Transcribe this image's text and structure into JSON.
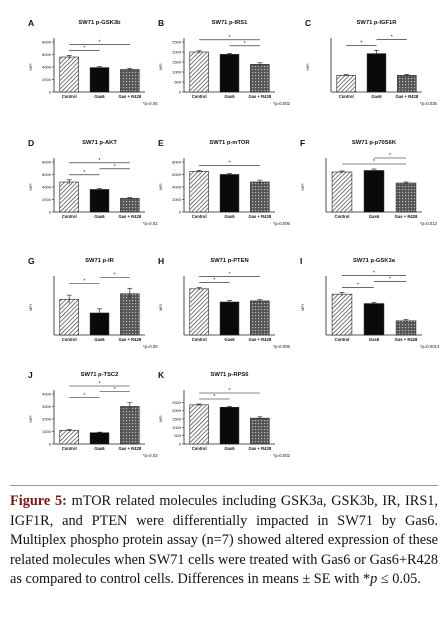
{
  "figure": {
    "caption_label": "Figure 5:",
    "caption_text": " mTOR related molecules including GSK3a, GSK3b, IR, IRS1, IGF1R, and PTEN were differentially impacted in SW71 by Gas6. Multiplex phospho protein assay (n=7) showed altered expression of these related molecules when SW71 cells were treated with Gas6 or Gas6+R428 as compared to control cells. Differences in means ± SE with *p ≤ 0.05."
  },
  "chart_data": [
    {
      "panel": "A",
      "type": "bar",
      "title": "SW71 p-GSK3b",
      "ylabel": "MFI",
      "categories": [
        "Control",
        "Gas6",
        "Gas + R428"
      ],
      "values": [
        5600,
        3900,
        3600
      ],
      "errors": [
        250,
        150,
        200
      ],
      "ylim": [
        0,
        8000
      ],
      "yticks": [
        "0",
        "2000",
        "4000",
        "6000",
        "8000"
      ],
      "pvalue": "*p=0.05",
      "brackets": [
        [
          0,
          1
        ],
        [
          0,
          2
        ]
      ]
    },
    {
      "panel": "B",
      "type": "bar",
      "title": "SW71 p-IRS1",
      "ylabel": "MFI",
      "categories": [
        "Control",
        "Gas6",
        "Gas + R428"
      ],
      "values": [
        2000,
        1880,
        1380
      ],
      "errors": [
        60,
        50,
        80
      ],
      "ylim": [
        0,
        2500
      ],
      "yticks": [
        "0",
        "500",
        "1000",
        "1500",
        "2000",
        "2500"
      ],
      "pvalue": "*p=0.002",
      "brackets": [
        [
          1,
          2
        ],
        [
          0,
          2
        ]
      ]
    },
    {
      "panel": "C",
      "type": "bar",
      "title": "SW71 p-IGF1R",
      "ylabel": "MFI",
      "categories": [
        "Control",
        "Gas6",
        "Gas + R428"
      ],
      "values": [
        1000,
        2300,
        1000
      ],
      "errors": [
        50,
        200,
        60
      ],
      "ylim": [
        0,
        3000
      ],
      "yticks": [],
      "pvalue": "*p=0.035",
      "brackets": [
        [
          0,
          1
        ],
        [
          1,
          2
        ]
      ]
    },
    {
      "panel": "D",
      "type": "bar",
      "title": "SW71 p-AKT",
      "ylabel": "MFI",
      "categories": [
        "Control",
        "Gas6",
        "Gas + R428"
      ],
      "values": [
        4800,
        3600,
        2200
      ],
      "errors": [
        350,
        150,
        100
      ],
      "ylim": [
        0,
        8000
      ],
      "yticks": [
        "0",
        "2000",
        "4000",
        "6000",
        "8000"
      ],
      "pvalue": "*p=0.01",
      "brackets": [
        [
          0,
          1
        ],
        [
          1,
          2
        ],
        [
          0,
          2
        ]
      ]
    },
    {
      "panel": "E",
      "type": "bar",
      "title": "SW71 p-mTOR",
      "ylabel": "MFI",
      "categories": [
        "Control",
        "Gas6",
        "Gas + R428"
      ],
      "values": [
        6500,
        6000,
        4800
      ],
      "errors": [
        150,
        150,
        300
      ],
      "ylim": [
        0,
        8000
      ],
      "yticks": [
        "0",
        "2000",
        "4000",
        "6000",
        "8000"
      ],
      "pvalue": "*p=0.006",
      "brackets": [
        [
          0,
          2
        ]
      ]
    },
    {
      "panel": "F",
      "type": "bar",
      "title": "SW71 p-p70S6K",
      "ylabel": "MFI",
      "categories": [
        "Control",
        "Gas6",
        "Gas + R428"
      ],
      "values": [
        800,
        830,
        580
      ],
      "errors": [
        20,
        30,
        20
      ],
      "ylim": [
        0,
        1000
      ],
      "yticks": [],
      "pvalue": "*p=0.013",
      "brackets": [
        [
          0,
          2
        ],
        [
          1,
          2
        ]
      ]
    },
    {
      "panel": "G",
      "type": "bar",
      "title": "SW71 p-IR",
      "ylabel": "MFI",
      "categories": [
        "Control",
        "Gas6",
        "Gas + R428"
      ],
      "values": [
        1300,
        800,
        1500
      ],
      "errors": [
        150,
        150,
        200
      ],
      "ylim": [
        0,
        2000
      ],
      "yticks": [],
      "pvalue": "*p=0.05",
      "brackets": [
        [
          0,
          1
        ],
        [
          1,
          2
        ]
      ]
    },
    {
      "panel": "H",
      "type": "bar",
      "title": "SW71 p-PTEN",
      "ylabel": "MFI",
      "categories": [
        "Control",
        "Gas6",
        "Gas + R428"
      ],
      "values": [
        4200,
        3000,
        3100
      ],
      "errors": [
        100,
        120,
        120
      ],
      "ylim": [
        0,
        5000
      ],
      "yticks": [],
      "pvalue": "*p=0.005",
      "brackets": [
        [
          0,
          1
        ],
        [
          0,
          2
        ]
      ]
    },
    {
      "panel": "I",
      "type": "bar",
      "title": "SW71 p-GSK3a",
      "ylabel": "MFI",
      "categories": [
        "Control",
        "Gas6",
        "Gas + R428"
      ],
      "values": [
        2600,
        2000,
        900
      ],
      "errors": [
        100,
        80,
        80
      ],
      "ylim": [
        0,
        3500
      ],
      "yticks": [],
      "pvalue": "*p=0.0013",
      "brackets": [
        [
          0,
          1
        ],
        [
          1,
          2
        ],
        [
          0,
          2
        ]
      ]
    },
    {
      "panel": "J",
      "type": "bar",
      "title": "SW71 p-TSC2",
      "ylabel": "MFI",
      "categories": [
        "Control",
        "Gas6",
        "Gas + R428"
      ],
      "values": [
        1100,
        900,
        3000
      ],
      "errors": [
        60,
        50,
        300
      ],
      "ylim": [
        0,
        4000
      ],
      "yticks": [
        "0",
        "1000",
        "2000",
        "3000",
        "4000"
      ],
      "pvalue": "*p=0.02",
      "brackets": [
        [
          0,
          1
        ],
        [
          1,
          2
        ],
        [
          0,
          2
        ]
      ]
    },
    {
      "panel": "K",
      "type": "bar",
      "title": "SW71 p-RPS6",
      "ylabel": "MFI",
      "categories": [
        "Control",
        "Gas6",
        "Gas + R428"
      ],
      "values": [
        2350,
        2200,
        1550
      ],
      "errors": [
        50,
        50,
        80
      ],
      "ylim": [
        0,
        3000
      ],
      "yticks": [
        "0",
        "500",
        "1000",
        "1500",
        "2000",
        "2500"
      ],
      "pvalue": "*p=0.002",
      "brackets": [
        [
          0,
          1
        ],
        [
          0,
          2
        ]
      ]
    }
  ]
}
